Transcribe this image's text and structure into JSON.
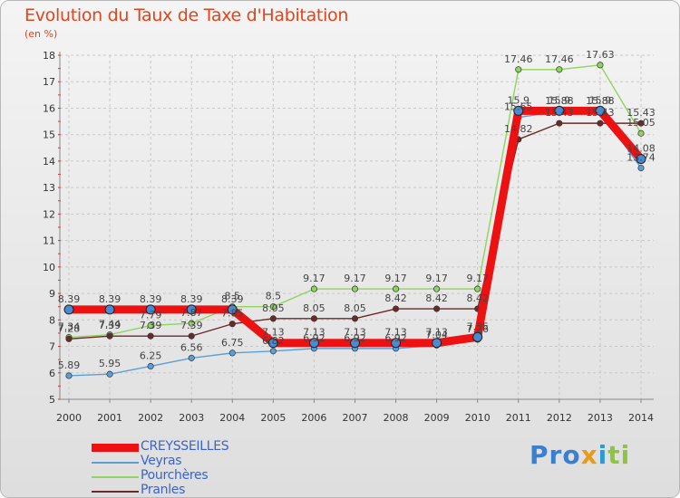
{
  "header": {
    "title": "Evolution du Taux de Taxe d'Habitation",
    "subtitle": "(en %)"
  },
  "logo": {
    "part1": "Pro",
    "part2": "x",
    "part3": "i",
    "part4": "ti"
  },
  "chart_data": {
    "type": "line",
    "title": "Evolution du Taux de Taxe d'Habitation",
    "ylabel": "(en %)",
    "xlabel": "",
    "ylim": [
      5,
      18
    ],
    "yticks": [
      "5",
      "6",
      "7",
      "8",
      "9",
      "10",
      "11",
      "12",
      "13",
      "14",
      "15",
      "16",
      "17",
      "18"
    ],
    "categories": [
      "2000",
      "2001",
      "2002",
      "2003",
      "2004",
      "2005",
      "2006",
      "2007",
      "2008",
      "2009",
      "2010",
      "2011",
      "2012",
      "2013",
      "2014"
    ],
    "legend_position": "bottom-left",
    "series": [
      {
        "name": "Veyras",
        "color": "#5b9fd8",
        "values": [
          5.89,
          5.95,
          6.25,
          6.56,
          6.75,
          6.82,
          6.92,
          6.92,
          6.92,
          7.04,
          7.26,
          15.65,
          15.88,
          15.88,
          13.74
        ],
        "labels": [
          "5.89",
          "5.95",
          "6.25",
          "6.56",
          "6.75",
          "6.82",
          "6.92",
          "6.92",
          "6.92",
          "7.04",
          "7.26",
          "15.65",
          "15.88",
          "15.88",
          "13.74"
        ]
      },
      {
        "name": "Pourchères",
        "color": "#8ed45e",
        "values": [
          7.34,
          7.44,
          7.79,
          7.87,
          8.5,
          8.5,
          9.17,
          9.17,
          9.17,
          9.17,
          9.17,
          17.46,
          17.46,
          17.63,
          15.05
        ],
        "labels": [
          "7.34",
          "7.44",
          "7.79",
          "7.87",
          "8.5",
          "8.5",
          "9.17",
          "9.17",
          "9.17",
          "9.17",
          "9.17",
          "17.46",
          "17.46",
          "17.63",
          "15.05"
        ]
      },
      {
        "name": "Pranles",
        "color": "#6b2a2a",
        "values": [
          7.28,
          7.39,
          7.39,
          7.39,
          7.85,
          8.05,
          8.05,
          8.05,
          8.42,
          8.42,
          8.42,
          14.82,
          15.43,
          15.43,
          15.43
        ],
        "labels": [
          "7.28",
          "7.39",
          "7.39",
          "7.39",
          "7.85",
          "8.05",
          "8.05",
          "8.05",
          "8.42",
          "8.42",
          "8.42",
          "14.82",
          "15.43",
          "15.43",
          "15.43"
        ]
      },
      {
        "name": "CREYSSEILLES",
        "color": "#ee1111",
        "values": [
          8.39,
          8.39,
          8.39,
          8.39,
          8.39,
          7.13,
          7.13,
          7.13,
          7.13,
          7.13,
          7.35,
          15.9,
          15.9,
          15.9,
          14.08
        ],
        "labels": [
          "8.39",
          "8.39",
          "8.39",
          "8.39",
          "8.39",
          "7.13",
          "7.13",
          "7.13",
          "7.13",
          "7.13",
          "7.35",
          "15.9",
          "15.9",
          "15.9",
          "14.08"
        ]
      }
    ],
    "legend": [
      "CREYSSEILLES",
      "Veyras",
      "Pourchères",
      "Pranles"
    ]
  }
}
